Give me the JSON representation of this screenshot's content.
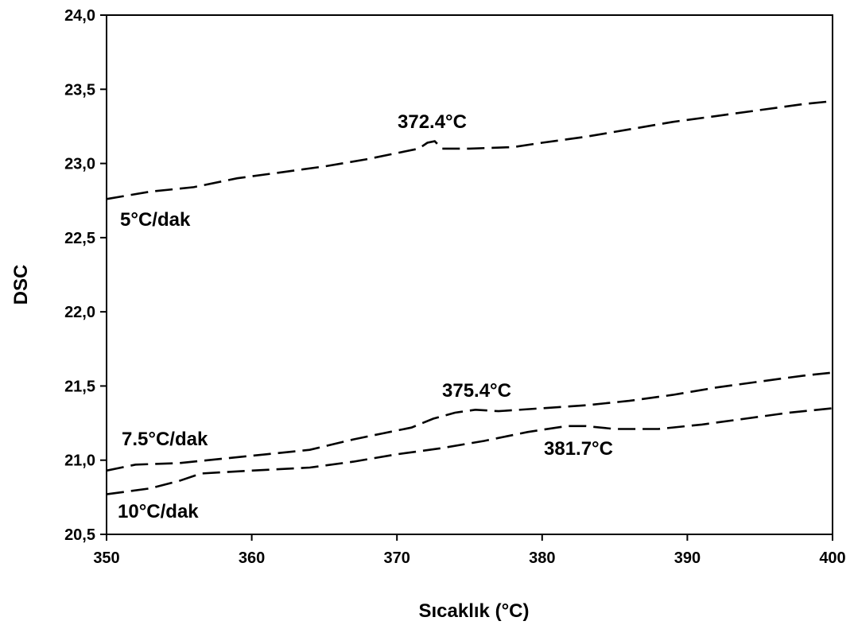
{
  "chart_data": {
    "type": "line",
    "title": "",
    "xlabel": "Sıcaklık (°C)",
    "ylabel": "DSC",
    "xlim": [
      350,
      400
    ],
    "ylim": [
      20.5,
      24.0
    ],
    "x_ticks": [
      350,
      360,
      370,
      380,
      390,
      400
    ],
    "x_tick_labels": [
      "350",
      "360",
      "370",
      "380",
      "390",
      "400"
    ],
    "y_ticks": [
      20.5,
      21.0,
      21.5,
      22.0,
      22.5,
      23.0,
      23.5,
      24.0
    ],
    "y_tick_labels": [
      "20,5",
      "21,0",
      "21,5",
      "22,0",
      "22,5",
      "23,0",
      "23,5",
      "24,0"
    ],
    "grid": false,
    "legend": "none",
    "line_color": "#000000",
    "series": [
      {
        "label": "5°C/dak",
        "peak_label": "372.4°C",
        "points": [
          [
            350,
            22.76
          ],
          [
            353,
            22.81
          ],
          [
            356,
            22.84
          ],
          [
            359,
            22.9
          ],
          [
            362,
            22.94
          ],
          [
            365,
            22.98
          ],
          [
            368,
            23.03
          ],
          [
            370,
            23.07
          ],
          [
            371.5,
            23.1
          ],
          [
            372.1,
            23.14
          ],
          [
            372.6,
            23.15
          ],
          [
            373.1,
            23.1
          ],
          [
            375,
            23.1
          ],
          [
            378,
            23.11
          ],
          [
            380,
            23.14
          ],
          [
            383,
            23.18
          ],
          [
            386,
            23.23
          ],
          [
            389,
            23.28
          ],
          [
            392,
            23.32
          ],
          [
            395,
            23.36
          ],
          [
            398,
            23.4
          ],
          [
            400,
            23.42
          ]
        ]
      },
      {
        "label": "7.5°C/dak",
        "peak_label": "375.4°C",
        "points": [
          [
            350,
            20.93
          ],
          [
            352,
            20.97
          ],
          [
            355,
            20.98
          ],
          [
            358,
            21.01
          ],
          [
            361,
            21.04
          ],
          [
            364,
            21.07
          ],
          [
            367,
            21.14
          ],
          [
            369,
            21.18
          ],
          [
            371,
            21.22
          ],
          [
            372.5,
            21.28
          ],
          [
            374,
            21.32
          ],
          [
            375.4,
            21.34
          ],
          [
            377,
            21.33
          ],
          [
            380,
            21.35
          ],
          [
            383,
            21.37
          ],
          [
            386,
            21.4
          ],
          [
            389,
            21.44
          ],
          [
            392,
            21.49
          ],
          [
            395,
            21.53
          ],
          [
            398,
            21.57
          ],
          [
            400,
            21.59
          ]
        ]
      },
      {
        "label": "10°C/dak",
        "peak_label": "381.7°C",
        "points": [
          [
            350,
            20.77
          ],
          [
            353,
            20.81
          ],
          [
            355,
            20.86
          ],
          [
            356.5,
            20.91
          ],
          [
            360,
            20.93
          ],
          [
            364,
            20.95
          ],
          [
            367,
            20.99
          ],
          [
            370,
            21.04
          ],
          [
            373,
            21.08
          ],
          [
            376,
            21.13
          ],
          [
            379,
            21.19
          ],
          [
            381.7,
            21.23
          ],
          [
            383,
            21.23
          ],
          [
            385,
            21.21
          ],
          [
            388,
            21.21
          ],
          [
            391,
            21.24
          ],
          [
            394,
            21.28
          ],
          [
            397,
            21.32
          ],
          [
            400,
            21.35
          ]
        ]
      }
    ]
  }
}
